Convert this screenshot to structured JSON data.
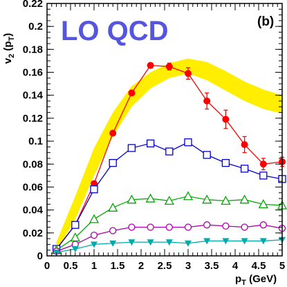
{
  "chart_data": {
    "type": "scatter",
    "title": "LO QCD",
    "panel_label": "(b)",
    "xlabel": "p_T (GeV)",
    "ylabel": "v_2 (p_T)",
    "xlim": [
      0,
      5
    ],
    "ylim": [
      0,
      0.22
    ],
    "grid": false,
    "x_ticks": [
      "0",
      "0.5",
      "1",
      "1.5",
      "2",
      "2.5",
      "3",
      "3.5",
      "4",
      "4.5",
      "5"
    ],
    "y_ticks": [
      "0",
      "0.02",
      "0.04",
      "0.06",
      "0.08",
      "0.1",
      "0.12",
      "0.14",
      "0.16",
      "0.18",
      "0.2",
      "0.22"
    ],
    "band": {
      "color": "#ffee00",
      "x": [
        0.2,
        0.6,
        1.0,
        1.4,
        1.8,
        2.2,
        2.6,
        3.0,
        3.4,
        3.8,
        4.2,
        4.6,
        5.0
      ],
      "upper": [
        0.012,
        0.052,
        0.094,
        0.125,
        0.148,
        0.16,
        0.168,
        0.172,
        0.169,
        0.161,
        0.152,
        0.145,
        0.14
      ],
      "lower": [
        0.004,
        0.032,
        0.07,
        0.104,
        0.13,
        0.146,
        0.155,
        0.159,
        0.153,
        0.144,
        0.135,
        0.128,
        0.124
      ]
    },
    "series": [
      {
        "color": "#ff0000",
        "marker": "filled-circle",
        "x": [
          0.2,
          0.6,
          1.0,
          1.4,
          1.8,
          2.2,
          2.6,
          3.0,
          3.4,
          3.8,
          4.2,
          4.6,
          5.0
        ],
        "y": [
          0.006,
          0.027,
          0.063,
          0.107,
          0.142,
          0.166,
          0.165,
          0.159,
          0.135,
          0.119,
          0.097,
          0.08,
          0.082
        ],
        "err": [
          0.001,
          0.001,
          0.002,
          0.002,
          0.002,
          0.002,
          0.003,
          0.005,
          0.007,
          0.008,
          0.007,
          0.005,
          0.004
        ]
      },
      {
        "color": "#0000cc",
        "marker": "open-square",
        "x": [
          0.2,
          0.6,
          1.0,
          1.4,
          1.8,
          2.2,
          2.6,
          3.0,
          3.4,
          3.8,
          4.2,
          4.6,
          5.0
        ],
        "y": [
          0.006,
          0.027,
          0.058,
          0.081,
          0.094,
          0.098,
          0.091,
          0.099,
          0.088,
          0.081,
          0.076,
          0.07,
          0.067
        ],
        "err": [
          0,
          0,
          0,
          0,
          0,
          0,
          0,
          0,
          0,
          0,
          0,
          0,
          0
        ]
      },
      {
        "color": "#00aa00",
        "marker": "open-triangle",
        "x": [
          0.2,
          0.6,
          1.0,
          1.4,
          1.8,
          2.2,
          2.6,
          3.0,
          3.4,
          3.8,
          4.2,
          4.6,
          5.0
        ],
        "y": [
          0.005,
          0.016,
          0.032,
          0.042,
          0.049,
          0.05,
          0.048,
          0.052,
          0.049,
          0.048,
          0.049,
          0.045,
          0.044
        ],
        "err": [
          0,
          0,
          0,
          0,
          0,
          0,
          0,
          0,
          0,
          0,
          0,
          0,
          0
        ]
      },
      {
        "color": "#aa00aa",
        "marker": "open-circle",
        "x": [
          0.2,
          0.6,
          1.0,
          1.4,
          1.8,
          2.2,
          2.6,
          3.0,
          3.4,
          3.8,
          4.2,
          4.6,
          5.0
        ],
        "y": [
          0.004,
          0.01,
          0.018,
          0.022,
          0.025,
          0.025,
          0.025,
          0.025,
          0.027,
          0.026,
          0.025,
          0.027,
          0.024
        ],
        "err": [
          0,
          0,
          0,
          0,
          0,
          0,
          0,
          0,
          0,
          0,
          0,
          0,
          0
        ]
      },
      {
        "color": "#00aaaa",
        "marker": "filled-triangle-down",
        "x": [
          0.2,
          0.6,
          1.0,
          1.4,
          1.8,
          2.2,
          2.6,
          3.0,
          3.4,
          3.8,
          4.2,
          4.6,
          5.0
        ],
        "y": [
          0.003,
          0.006,
          0.01,
          0.011,
          0.012,
          0.012,
          0.012,
          0.011,
          0.013,
          0.013,
          0.013,
          0.013,
          0.014
        ],
        "err": [
          0,
          0,
          0,
          0,
          0,
          0,
          0,
          0,
          0,
          0,
          0,
          0,
          0
        ]
      }
    ],
    "title_color": "#5555dd"
  }
}
